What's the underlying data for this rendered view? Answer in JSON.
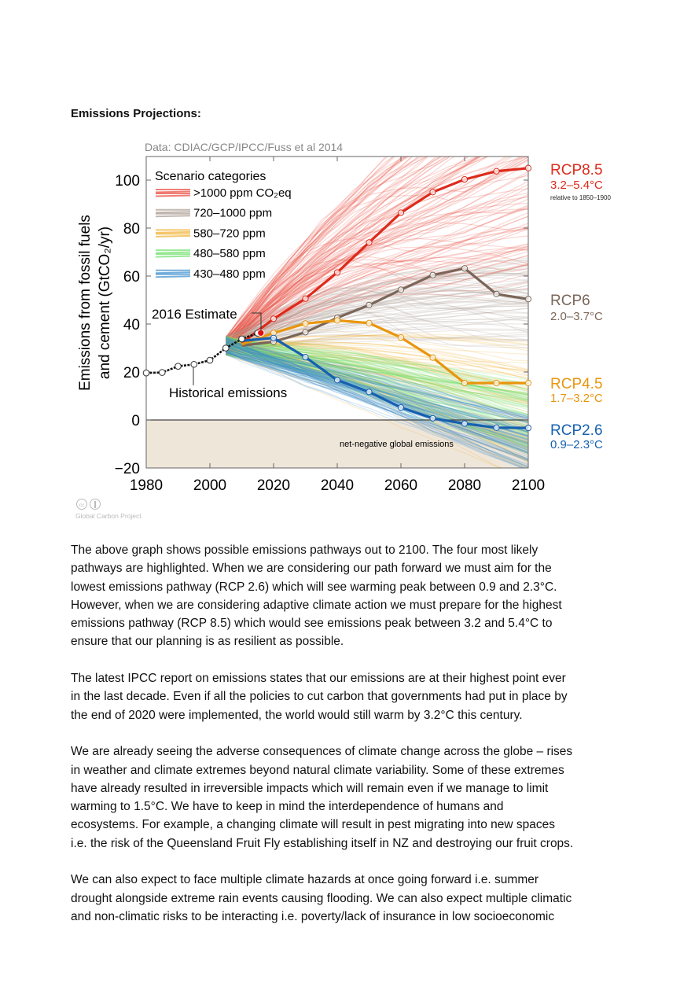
{
  "heading": "Emissions Projections:",
  "chart_data": {
    "type": "line",
    "source_note": "Data: CDIAC/GCP/IPCC/Fuss et al 2014",
    "ylabel_lines": [
      "Emissions from fossil fuels",
      "and cement (GtCO₂/yr)"
    ],
    "xlim": [
      1980,
      2100
    ],
    "ylim": [
      -20,
      110
    ],
    "x_ticks": [
      1980,
      2000,
      2020,
      2040,
      2060,
      2080,
      2100
    ],
    "y_ticks": [
      -20,
      0,
      20,
      40,
      60,
      80,
      100
    ],
    "y_tick_labels": [
      "−20",
      "0",
      "20",
      "40",
      "60",
      "80",
      "100"
    ],
    "grid": false,
    "legend": {
      "title": "Scenario categories",
      "placement": "top-left",
      "items": [
        {
          "label": ">1000 ppm CO₂eq",
          "color": "#e8473a"
        },
        {
          "label": "720–1000 ppm",
          "color": "#a89a90"
        },
        {
          "label": "580–720 ppm",
          "color": "#f0b030"
        },
        {
          "label": "480–580 ppm",
          "color": "#6de06a"
        },
        {
          "label": "430–480 ppm",
          "color": "#3a8ccc"
        }
      ]
    },
    "historical": {
      "label": "Historical emissions",
      "x": [
        1980,
        1985,
        1990,
        1995,
        2000,
        2005,
        2010,
        2015
      ],
      "y": [
        19.6,
        19.8,
        22.4,
        23.2,
        24.9,
        30.0,
        33.8,
        36.2
      ]
    },
    "estimate_2016": {
      "label": "2016 Estimate",
      "x": 2016,
      "y": 36.3,
      "color": "#e01010"
    },
    "x_pathway": [
      2010,
      2020,
      2030,
      2040,
      2050,
      2060,
      2070,
      2080,
      2090,
      2100
    ],
    "series": [
      {
        "name": "RCP8.5",
        "range": "3.2–5.4°C",
        "note": "relative to 1850–1900",
        "color": "#dd2a1b",
        "values": [
          32,
          42.2,
          50.6,
          61.5,
          74.0,
          86.4,
          95.0,
          100.3,
          103.7,
          105.0
        ]
      },
      {
        "name": "RCP6",
        "range": "2.0–3.7°C",
        "color": "#7a6659",
        "values": [
          31,
          32.6,
          36.6,
          42.6,
          47.9,
          54.3,
          60.4,
          63.2,
          52.5,
          50.4
        ]
      },
      {
        "name": "RCP4.5",
        "range": "1.7–3.2°C",
        "color": "#e8960f",
        "values": [
          31.5,
          36.3,
          40.2,
          41.5,
          40.4,
          34.4,
          26.0,
          15.4,
          15.4,
          15.4
        ]
      },
      {
        "name": "RCP2.6",
        "range": "0.9–2.3°C",
        "color": "#1660b0",
        "values": [
          33,
          34.2,
          26.2,
          16.6,
          11.7,
          5.2,
          0.7,
          -1.5,
          -3.2,
          -3.3
        ]
      }
    ],
    "annotations": {
      "net_negative": "net-negative global emissions",
      "net_negative_fill": "#efe6da"
    }
  },
  "credit": {
    "license_icons": [
      "cc-icon",
      "by-attribution-icon"
    ],
    "text": "Global Carbon Project"
  },
  "paragraphs": [
    [
      "The above graph shows possible emissions pathways out to 2100.  The four most likely",
      "pathways are highlighted.  When we are considering our path forward we must aim for the",
      "lowest emissions pathway (RCP 2.6) which will see warming peak between 0.9 and 2.3°C.",
      "However, when we are considering adaptive climate action we must prepare for the highest",
      "emissions pathway (RCP 8.5) which would see emissions peak between 3.2 and 5.4°C to",
      "ensure that our planning is as resilient as possible."
    ],
    [
      "The latest IPCC report on emissions states that our emissions are at their highest point ever",
      "in the last decade.  Even if all the policies to cut carbon that governments had put in place by",
      "the end of 2020 were implemented, the world would still warm by 3.2°C this century."
    ],
    [
      "We are already seeing the adverse consequences of climate change across the globe – rises",
      "in weather and climate extremes beyond natural climate variability.  Some of these extremes",
      "have already resulted in irreversible impacts which will remain even if we manage to limit",
      "warming to 1.5°C.  We have to keep in mind the interdependence of humans and",
      "ecosystems.  For example, a changing climate will result in pest migrating into new spaces",
      "i.e. the risk of the Queensland Fruit Fly establishing itself in NZ and destroying our fruit crops."
    ],
    [
      "We can also expect to face multiple climate hazards at once going forward i.e. summer",
      "drought alongside extreme rain events causing flooding.  We can also expect multiple climatic",
      "and non-climatic risks to be interacting i.e. poverty/lack of insurance in low socioeconomic"
    ]
  ]
}
